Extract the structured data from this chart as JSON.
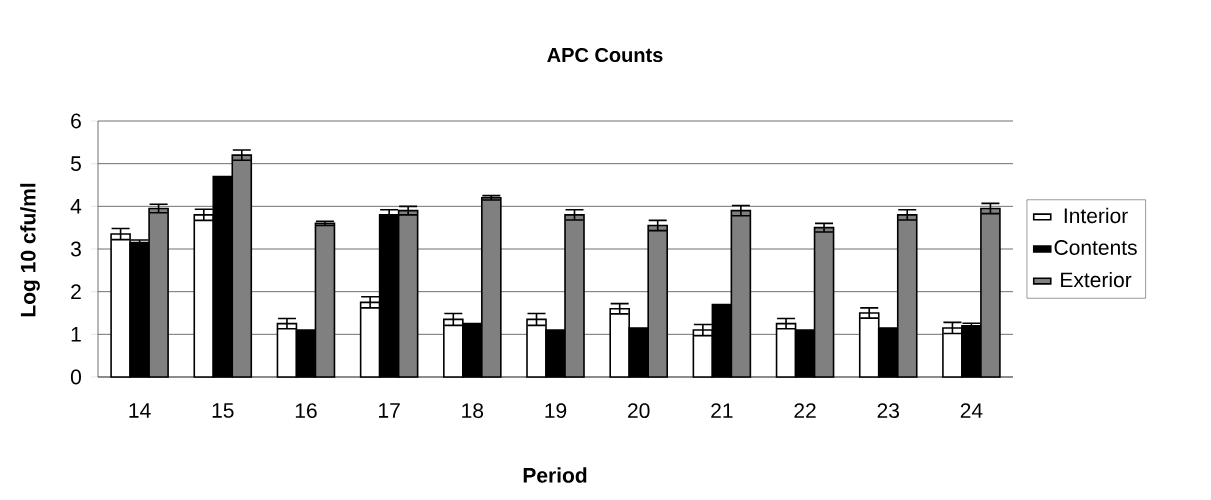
{
  "chart_data": {
    "type": "bar",
    "title": "APC Counts",
    "xlabel": "Period",
    "ylabel": "Log 10 cfu/ml",
    "categories": [
      "14",
      "15",
      "16",
      "17",
      "18",
      "19",
      "20",
      "21",
      "22",
      "23",
      "24"
    ],
    "series": [
      {
        "name": "Interior",
        "color": "#ffffff",
        "values": [
          3.35,
          3.8,
          1.25,
          1.75,
          1.35,
          1.35,
          1.6,
          1.1,
          1.25,
          1.5,
          1.15
        ],
        "errors": [
          0.13,
          0.13,
          0.12,
          0.13,
          0.14,
          0.14,
          0.12,
          0.13,
          0.12,
          0.12,
          0.13
        ]
      },
      {
        "name": "Contents",
        "color": "#000000",
        "values": [
          3.15,
          4.7,
          1.1,
          3.8,
          1.25,
          1.1,
          1.15,
          1.7,
          1.1,
          1.15,
          1.2
        ],
        "errors": [
          0.06,
          null,
          null,
          0.12,
          null,
          null,
          null,
          null,
          null,
          null,
          0.06
        ]
      },
      {
        "name": "Exterior",
        "color": "#808080",
        "values": [
          3.95,
          5.2,
          3.6,
          3.9,
          4.2,
          3.8,
          3.55,
          3.9,
          3.5,
          3.8,
          3.95
        ],
        "errors": [
          0.1,
          0.12,
          0.05,
          0.1,
          0.05,
          0.12,
          0.12,
          0.12,
          0.1,
          0.12,
          0.12
        ]
      }
    ],
    "ylim": [
      0,
      6
    ],
    "yticks": [
      0,
      1,
      2,
      3,
      4,
      5,
      6
    ],
    "grid": "y",
    "legend": "right"
  }
}
